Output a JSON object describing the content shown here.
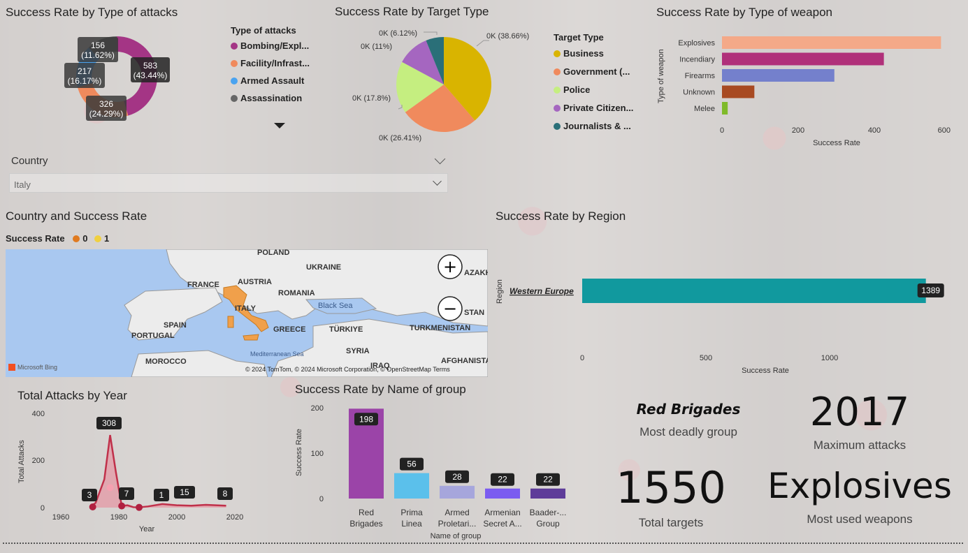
{
  "attack_type": {
    "title": "Success Rate by Type of attacks",
    "legend_title": "Type of attacks",
    "legend": [
      "Bombing/Expl...",
      "Facility/Infrast...",
      "Armed Assault",
      "Assassination"
    ],
    "labels": [
      {
        "v": "583",
        "p": "(43.44%)"
      },
      {
        "v": "326",
        "p": "(24.29%)"
      },
      {
        "v": "217",
        "p": "(16.17%)"
      },
      {
        "v": "156",
        "p": "(11.62%)"
      }
    ]
  },
  "target_type": {
    "title": "Success Rate by Target Type",
    "legend_title": "Target Type",
    "legend": [
      "Business",
      "Government (...",
      "Police",
      "Private Citizen...",
      "Journalists & ..."
    ],
    "labels": [
      "0K (38.66%)",
      "0K (26.41%)",
      "0K (17.8%)",
      "0K (11%)",
      "0K (6.12%)"
    ]
  },
  "weapon": {
    "title": "Success Rate by Type of weapon",
    "ylabel": "Type of weapon",
    "xlabel": "Success Rate",
    "ticks": [
      "0",
      "200",
      "400",
      "600"
    ]
  },
  "country_filter": {
    "label": "Country",
    "value": "Italy"
  },
  "map": {
    "title": "Country and Success Rate",
    "legend_title": "Success Rate",
    "legend": [
      "0",
      "1"
    ],
    "places": [
      "POLAND",
      "UKRAINE",
      "FRANCE",
      "AUSTRIA",
      "ROMANIA",
      "ITALY",
      "Black Sea",
      "SPAIN",
      "GREECE",
      "TÜRKIYE",
      "TURKMENISTAN",
      "PORTUGAL",
      "SYRIA",
      "MOROCCO",
      "IRAQ",
      "AFGHANISTA",
      "Mediterranean Sea",
      "AZAKH",
      "STAN"
    ],
    "attribution": "© 2024 TomTom, © 2024 Microsoft Corporation, © OpenStreetMap  Terms",
    "bing": "Microsoft Bing",
    "zoom_in": "+",
    "zoom_out": "−"
  },
  "region": {
    "title": "Success Rate by Region",
    "ylabel": "Region",
    "xlabel": "Success Rate",
    "ticks": [
      "0",
      "500",
      "1000"
    ],
    "category": "Western Europe",
    "value_label": "1389"
  },
  "year_chart": {
    "title": "Total Attacks by Year",
    "ylabel": "Total Attacks",
    "xlabel": "Year",
    "yticks": [
      "400",
      "200",
      "0"
    ],
    "xticks": [
      "1960",
      "1980",
      "2000",
      "2020"
    ],
    "labels": [
      "308",
      "3",
      "7",
      "1",
      "15",
      "8"
    ]
  },
  "group_chart": {
    "title": "Success Rate by Name of group",
    "ylabel": "Success Rate",
    "xlabel": "Name of group",
    "yticks": [
      "200",
      "100",
      "0"
    ],
    "categories": [
      [
        "Red",
        "Brigades"
      ],
      [
        "Prima",
        "Linea"
      ],
      [
        "Armed",
        "Proletari..."
      ],
      [
        "Armenian",
        "Secret A..."
      ],
      [
        "Baader-...",
        "Group"
      ]
    ],
    "value_labels": [
      "198",
      "56",
      "28",
      "22",
      "22"
    ]
  },
  "kpis": {
    "deadly_group": "Red Brigades",
    "deadly_group_sub": "Most deadly group",
    "max_attacks": "2017",
    "max_attacks_sub": "Maximum attacks",
    "total_targets": "1550",
    "total_targets_sub": "Total targets",
    "weapons": "Explosives",
    "weapons_sub": "Most used weapons"
  },
  "colors": {
    "bombing": "#a43585",
    "facility": "#f08a5d",
    "armed": "#4aa3f0",
    "assassination": "#666666",
    "business": "#d9b400",
    "government": "#f08a5d",
    "police": "#c5ee80",
    "private": "#a566c0",
    "journalists": "#2a6f78",
    "region_bar": "#11999e",
    "italy": "#f0a04b"
  },
  "chart_data": [
    {
      "type": "pie",
      "title": "Success Rate by Type of attacks",
      "categories": [
        "Bombing/Explosion",
        "Facility/Infrastructure Attack",
        "Armed Assault",
        "Assassination"
      ],
      "values": [
        583,
        326,
        217,
        156
      ],
      "percent": [
        43.44,
        24.29,
        16.17,
        11.62
      ],
      "donut": true,
      "legend": "right"
    },
    {
      "type": "pie",
      "title": "Success Rate by Target Type",
      "categories": [
        "Business",
        "Government (...",
        "Police",
        "Private Citizen...",
        "Journalists & ..."
      ],
      "percent": [
        38.66,
        26.41,
        17.8,
        11,
        6.12
      ],
      "legend": "right"
    },
    {
      "type": "bar",
      "orientation": "horizontal",
      "title": "Success Rate by Type of weapon",
      "categories": [
        "Explosives",
        "Incendiary",
        "Firearms",
        "Unknown",
        "Melee"
      ],
      "values": [
        575,
        425,
        295,
        85,
        15
      ],
      "colors": [
        "#f4a988",
        "#b0307a",
        "#7480cc",
        "#a84a22",
        "#7fba2a"
      ],
      "xlabel": "Success Rate",
      "ylabel": "Type of weapon",
      "xlim": [
        0,
        600
      ]
    },
    {
      "type": "bar",
      "orientation": "horizontal",
      "title": "Success Rate by Region",
      "categories": [
        "Western Europe"
      ],
      "values": [
        1389
      ],
      "xlabel": "Success Rate",
      "ylabel": "Region",
      "xlim": [
        0,
        1400
      ]
    },
    {
      "type": "area",
      "title": "Total Attacks by Year",
      "x": [
        1970,
        1972,
        1975,
        1977,
        1979,
        1981,
        1983,
        1985,
        1987,
        1990,
        1995,
        2000,
        2005,
        2010,
        2017
      ],
      "values": [
        3,
        20,
        120,
        308,
        150,
        7,
        10,
        2,
        1,
        5,
        15,
        10,
        8,
        12,
        8
      ],
      "xlabel": "Year",
      "ylabel": "Total Attacks",
      "ylim": [
        0,
        400
      ],
      "xlim": [
        1955,
        2025
      ]
    },
    {
      "type": "bar",
      "title": "Success Rate by Name of group",
      "categories": [
        "Red Brigades",
        "Prima Linea",
        "Armed Proletari...",
        "Armenian Secret A...",
        "Baader-... Group"
      ],
      "values": [
        198,
        56,
        28,
        22,
        22
      ],
      "colors": [
        "#9b44a8",
        "#5bc0eb",
        "#a6a6dc",
        "#7b5cf0",
        "#5e3c99"
      ],
      "xlabel": "Name of group",
      "ylabel": "Success Rate",
      "ylim": [
        0,
        200
      ]
    }
  ]
}
